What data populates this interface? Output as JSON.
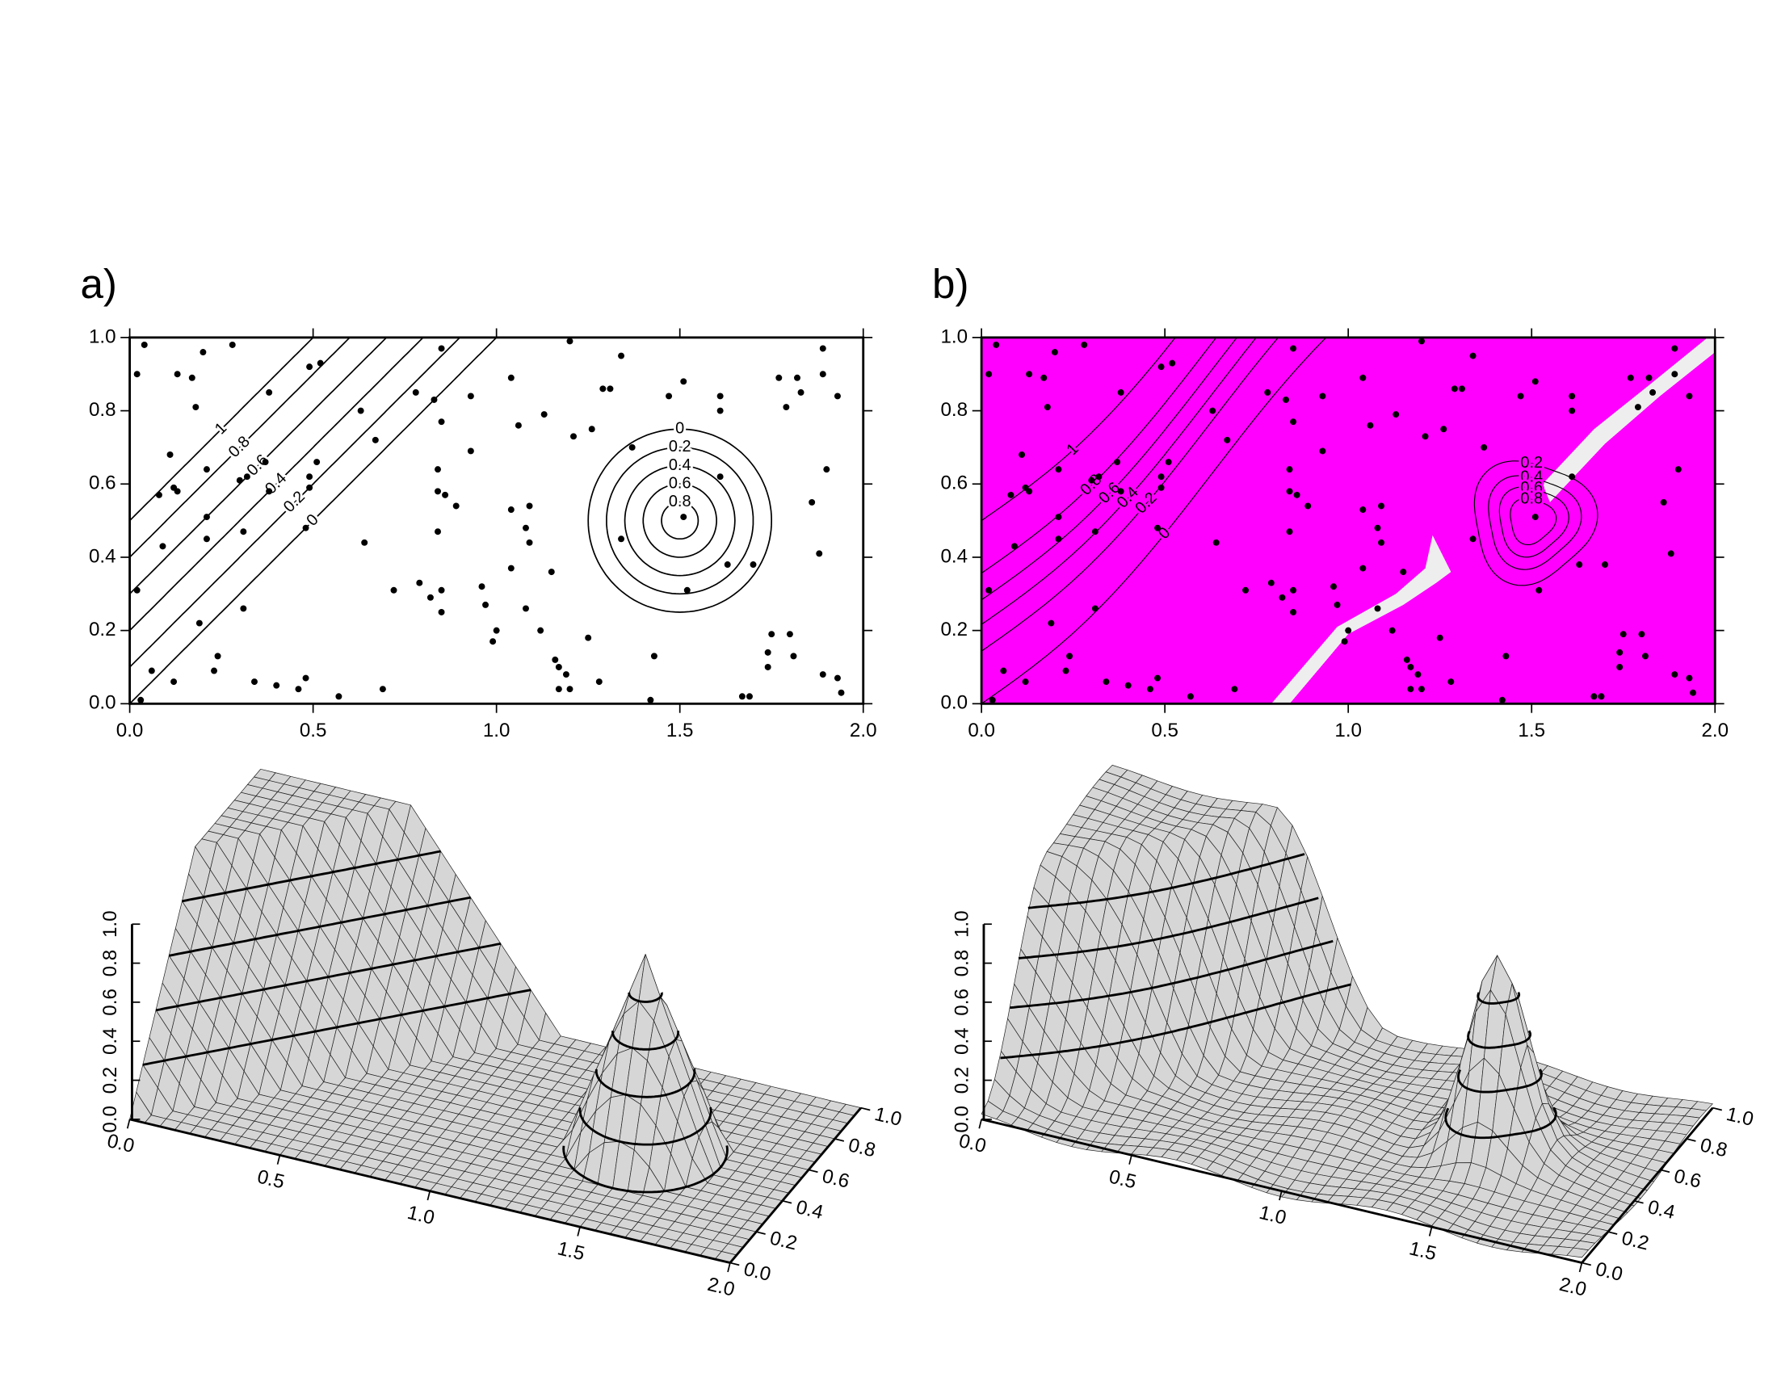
{
  "chart_data": [
    {
      "type": "contour",
      "panel_label": "a)",
      "xlim": [
        0,
        2
      ],
      "ylim": [
        0,
        1
      ],
      "xticks": [
        {
          "value": 0,
          "label": "0.0"
        },
        {
          "value": 0.5,
          "label": "0.5"
        },
        {
          "value": 1,
          "label": "1.0"
        },
        {
          "value": 1.5,
          "label": "1.5"
        },
        {
          "value": 2,
          "label": "2.0"
        }
      ],
      "yticks": [
        {
          "value": 0,
          "label": "0.0"
        },
        {
          "value": 0.2,
          "label": "0.2"
        },
        {
          "value": 0.4,
          "label": "0.4"
        },
        {
          "value": 0.6,
          "label": "0.6"
        },
        {
          "value": 0.8,
          "label": "0.8"
        },
        {
          "value": 1,
          "label": "1.0"
        }
      ],
      "ramp_levels": [
        1,
        0.8,
        0.6,
        0.4,
        0.2,
        0
      ],
      "peak_levels": [
        0,
        0.2,
        0.4,
        0.6,
        0.8
      ],
      "points": {
        "x": [
          0.04,
          0.02,
          0.2,
          0.28,
          0.13,
          0.17,
          0.18,
          0.49,
          0.52,
          0.38,
          0.11,
          0.21,
          0.12,
          0.13,
          0.08,
          0.32,
          0.3,
          0.37,
          0.38,
          0.49,
          0.51,
          0.49,
          0.21,
          0.09,
          0.21,
          0.31,
          0.48,
          0.02,
          0.31,
          0.19,
          0.24,
          0.23,
          0.06,
          0.12,
          0.34,
          0.4,
          0.46,
          0.48,
          0.57,
          0.03,
          0.69,
          0.72,
          0.64,
          0.67,
          0.63,
          0.83,
          0.78,
          0.85,
          0.85,
          1.04,
          1.2,
          0.93,
          1.13,
          1.34,
          1.29,
          1.31,
          1.21,
          1.26,
          1.51,
          1.47,
          1.61,
          1.61,
          0.93,
          1.06,
          0.84,
          0.84,
          0.86,
          0.89,
          1.04,
          1.09,
          1.08,
          0.84,
          1.04,
          1.15,
          1.09,
          0.79,
          0.82,
          0.85,
          0.96,
          0.97,
          1,
          0.99,
          1.08,
          1.12,
          0.85,
          1.25,
          1.16,
          1.17,
          1.19,
          1.17,
          1.2,
          1.28,
          1.43,
          1.42,
          1.37,
          1.61,
          1.51,
          1.34,
          1.7,
          1.63,
          1.52,
          1.77,
          1.82,
          1.89,
          1.89,
          1.79,
          1.83,
          1.93,
          1.9,
          1.86,
          1.88,
          1.75,
          1.8,
          1.74,
          1.74,
          1.81,
          1.89,
          1.93,
          1.94,
          1.67,
          1.69
        ],
        "y": [
          0.98,
          0.9,
          0.96,
          0.98,
          0.9,
          0.89,
          0.81,
          0.92,
          0.93,
          0.85,
          0.68,
          0.64,
          0.59,
          0.58,
          0.57,
          0.62,
          0.61,
          0.66,
          0.58,
          0.62,
          0.66,
          0.59,
          0.51,
          0.43,
          0.45,
          0.47,
          0.48,
          0.31,
          0.26,
          0.22,
          0.13,
          0.09,
          0.09,
          0.06,
          0.06,
          0.05,
          0.04,
          0.07,
          0.02,
          0.01,
          0.04,
          0.31,
          0.44,
          0.72,
          0.8,
          0.83,
          0.85,
          0.77,
          0.97,
          0.89,
          0.99,
          0.84,
          0.79,
          0.95,
          0.86,
          0.86,
          0.73,
          0.75,
          0.88,
          0.84,
          0.84,
          0.8,
          0.69,
          0.76,
          0.64,
          0.58,
          0.57,
          0.54,
          0.53,
          0.54,
          0.48,
          0.47,
          0.37,
          0.36,
          0.44,
          0.33,
          0.29,
          0.31,
          0.32,
          0.27,
          0.2,
          0.17,
          0.26,
          0.2,
          0.25,
          0.18,
          0.12,
          0.1,
          0.08,
          0.04,
          0.04,
          0.06,
          0.13,
          0.01,
          0.7,
          0.62,
          0.51,
          0.45,
          0.38,
          0.38,
          0.31,
          0.89,
          0.89,
          0.97,
          0.9,
          0.81,
          0.85,
          0.84,
          0.64,
          0.55,
          0.41,
          0.19,
          0.19,
          0.14,
          0.1,
          0.13,
          0.08,
          0.07,
          0.03,
          0.02,
          0.02
        ]
      }
    },
    {
      "type": "surface3d",
      "xlim": [
        0,
        2
      ],
      "ylim": [
        0,
        1
      ],
      "zlim": [
        0,
        1
      ],
      "xticks": [
        {
          "value": 0,
          "label": "0.0"
        },
        {
          "value": 0.5,
          "label": "0.5"
        },
        {
          "value": 1,
          "label": "1.0"
        },
        {
          "value": 1.5,
          "label": "1.5"
        },
        {
          "value": 2,
          "label": "2.0"
        }
      ],
      "yticks": [
        {
          "value": 0,
          "label": "0.0"
        },
        {
          "value": 0.2,
          "label": "0.2"
        },
        {
          "value": 0.4,
          "label": "0.4"
        },
        {
          "value": 0.6,
          "label": "0.6"
        },
        {
          "value": 0.8,
          "label": "0.8"
        },
        {
          "value": 1,
          "label": "1.0"
        }
      ],
      "zticks": [
        {
          "value": 0,
          "label": "0.0"
        },
        {
          "value": 0.2,
          "label": "0.2"
        },
        {
          "value": 0.4,
          "label": "0.4"
        },
        {
          "value": 0.6,
          "label": "0.6"
        },
        {
          "value": 0.8,
          "label": "0.8"
        },
        {
          "value": 1,
          "label": "1.0"
        }
      ]
    },
    {
      "type": "contour",
      "panel_label": "b)",
      "xlim": [
        0,
        2
      ],
      "ylim": [
        0,
        1
      ],
      "fill_color": "#ff00ff",
      "xticks": [
        {
          "value": 0,
          "label": "0.0"
        },
        {
          "value": 0.5,
          "label": "0.5"
        },
        {
          "value": 1,
          "label": "1.0"
        },
        {
          "value": 1.5,
          "label": "1.5"
        },
        {
          "value": 2,
          "label": "2.0"
        }
      ],
      "yticks": [
        {
          "value": 0,
          "label": "0.0"
        },
        {
          "value": 0.2,
          "label": "0.2"
        },
        {
          "value": 0.4,
          "label": "0.4"
        },
        {
          "value": 0.6,
          "label": "0.6"
        },
        {
          "value": 0.8,
          "label": "0.8"
        },
        {
          "value": 1,
          "label": "1.0"
        }
      ],
      "ramp_levels": [
        1,
        0.8,
        0.6,
        0.4,
        0.2,
        0
      ],
      "peak_levels": [
        0.2,
        0.4,
        0.6,
        0.8
      ],
      "points": {
        "x": [
          0.04,
          0.02,
          0.2,
          0.28,
          0.13,
          0.17,
          0.18,
          0.49,
          0.52,
          0.38,
          0.11,
          0.21,
          0.12,
          0.13,
          0.08,
          0.32,
          0.3,
          0.37,
          0.38,
          0.49,
          0.51,
          0.49,
          0.21,
          0.09,
          0.21,
          0.31,
          0.48,
          0.02,
          0.31,
          0.19,
          0.24,
          0.23,
          0.06,
          0.12,
          0.34,
          0.4,
          0.46,
          0.48,
          0.57,
          0.03,
          0.69,
          0.72,
          0.64,
          0.67,
          0.63,
          0.83,
          0.78,
          0.85,
          0.85,
          1.04,
          1.2,
          0.93,
          1.13,
          1.34,
          1.29,
          1.31,
          1.21,
          1.26,
          1.51,
          1.47,
          1.61,
          1.61,
          0.93,
          1.06,
          0.84,
          0.84,
          0.86,
          0.89,
          1.04,
          1.09,
          1.08,
          0.84,
          1.04,
          1.15,
          1.09,
          0.79,
          0.82,
          0.85,
          0.96,
          0.97,
          1,
          0.99,
          1.08,
          1.12,
          0.85,
          1.25,
          1.16,
          1.17,
          1.19,
          1.17,
          1.2,
          1.28,
          1.43,
          1.42,
          1.37,
          1.61,
          1.51,
          1.34,
          1.7,
          1.63,
          1.52,
          1.77,
          1.82,
          1.89,
          1.89,
          1.79,
          1.83,
          1.93,
          1.9,
          1.86,
          1.88,
          1.75,
          1.8,
          1.74,
          1.74,
          1.81,
          1.89,
          1.93,
          1.94,
          1.67,
          1.69
        ],
        "y": [
          0.98,
          0.9,
          0.96,
          0.98,
          0.9,
          0.89,
          0.81,
          0.92,
          0.93,
          0.85,
          0.68,
          0.64,
          0.59,
          0.58,
          0.57,
          0.62,
          0.61,
          0.66,
          0.58,
          0.62,
          0.66,
          0.59,
          0.51,
          0.43,
          0.45,
          0.47,
          0.48,
          0.31,
          0.26,
          0.22,
          0.13,
          0.09,
          0.09,
          0.06,
          0.06,
          0.05,
          0.04,
          0.07,
          0.02,
          0.01,
          0.04,
          0.31,
          0.44,
          0.72,
          0.8,
          0.83,
          0.85,
          0.77,
          0.97,
          0.89,
          0.99,
          0.84,
          0.79,
          0.95,
          0.86,
          0.86,
          0.73,
          0.75,
          0.88,
          0.84,
          0.84,
          0.8,
          0.69,
          0.76,
          0.64,
          0.58,
          0.57,
          0.54,
          0.53,
          0.54,
          0.48,
          0.47,
          0.37,
          0.36,
          0.44,
          0.33,
          0.29,
          0.31,
          0.32,
          0.27,
          0.2,
          0.17,
          0.26,
          0.2,
          0.25,
          0.18,
          0.12,
          0.1,
          0.08,
          0.04,
          0.04,
          0.06,
          0.13,
          0.01,
          0.7,
          0.62,
          0.51,
          0.45,
          0.38,
          0.38,
          0.31,
          0.89,
          0.89,
          0.97,
          0.9,
          0.81,
          0.85,
          0.84,
          0.64,
          0.55,
          0.41,
          0.19,
          0.19,
          0.14,
          0.1,
          0.13,
          0.08,
          0.07,
          0.03,
          0.02,
          0.02
        ]
      }
    },
    {
      "type": "surface3d",
      "xlim": [
        0,
        2
      ],
      "ylim": [
        0,
        1
      ],
      "zlim": [
        0,
        1
      ],
      "xticks": [
        {
          "value": 0,
          "label": "0.0"
        },
        {
          "value": 0.5,
          "label": "0.5"
        },
        {
          "value": 1,
          "label": "1.0"
        },
        {
          "value": 1.5,
          "label": "1.5"
        },
        {
          "value": 2,
          "label": "2.0"
        }
      ],
      "yticks": [
        {
          "value": 0,
          "label": "0.0"
        },
        {
          "value": 0.2,
          "label": "0.2"
        },
        {
          "value": 0.4,
          "label": "0.4"
        },
        {
          "value": 0.6,
          "label": "0.6"
        },
        {
          "value": 0.8,
          "label": "0.8"
        },
        {
          "value": 1,
          "label": "1.0"
        }
      ],
      "zticks": [
        {
          "value": 0,
          "label": "0.0"
        },
        {
          "value": 0.2,
          "label": "0.2"
        },
        {
          "value": 0.4,
          "label": "0.4"
        },
        {
          "value": 0.6,
          "label": "0.6"
        },
        {
          "value": 0.8,
          "label": "0.8"
        },
        {
          "value": 1,
          "label": "1.0"
        }
      ]
    }
  ]
}
